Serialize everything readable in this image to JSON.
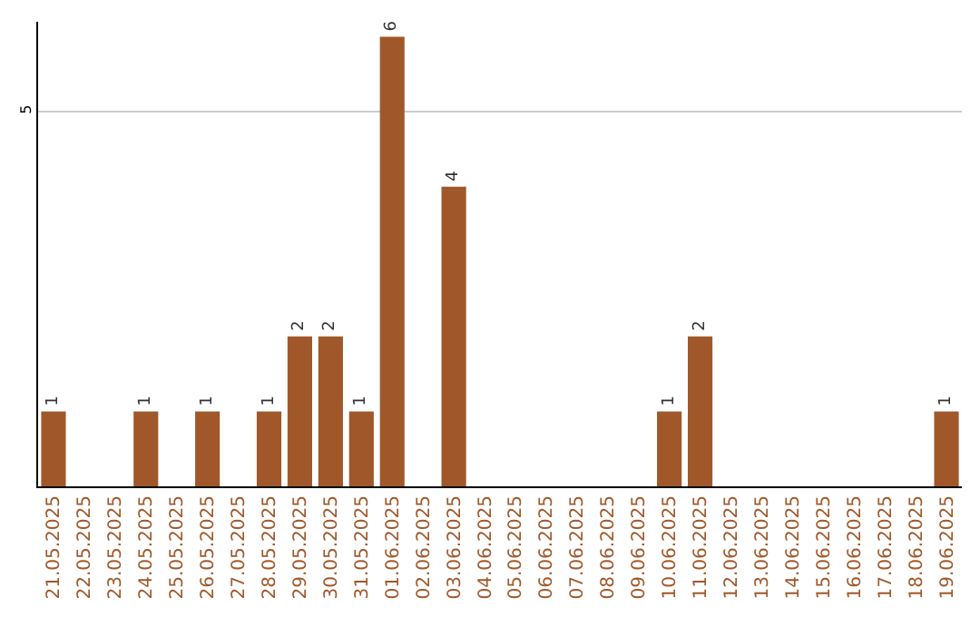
{
  "chart_data": {
    "type": "bar",
    "categories": [
      "21.05.2025",
      "22.05.2025",
      "23.05.2025",
      "24.05.2025",
      "25.05.2025",
      "26.05.2025",
      "27.05.2025",
      "28.05.2025",
      "29.05.2025",
      "30.05.2025",
      "31.05.2025",
      "01.06.2025",
      "02.06.2025",
      "03.06.2025",
      "04.06.2025",
      "05.06.2025",
      "06.06.2025",
      "07.06.2025",
      "08.06.2025",
      "09.06.2025",
      "10.06.2025",
      "11.06.2025",
      "12.06.2025",
      "13.06.2025",
      "14.06.2025",
      "15.06.2025",
      "16.06.2025",
      "17.06.2025",
      "18.06.2025",
      "19.06.2025"
    ],
    "values": [
      1,
      0,
      0,
      1,
      0,
      1,
      0,
      1,
      2,
      2,
      1,
      6,
      0,
      4,
      0,
      0,
      0,
      0,
      0,
      0,
      1,
      2,
      0,
      0,
      0,
      0,
      0,
      0,
      0,
      1
    ],
    "value_labels": [
      "1",
      null,
      null,
      "1",
      null,
      "1",
      null,
      "1",
      "2",
      "2",
      "1",
      "6",
      null,
      "4",
      null,
      null,
      null,
      null,
      null,
      null,
      "1",
      "2",
      null,
      null,
      null,
      null,
      null,
      null,
      null,
      "1"
    ],
    "color": "#a0582a",
    "ylim": [
      0,
      6.2
    ],
    "yticks": [
      5
    ],
    "grid": "y",
    "legend": false
  }
}
